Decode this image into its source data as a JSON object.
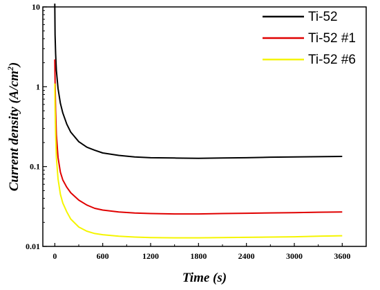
{
  "chart_data": {
    "type": "line",
    "title": "",
    "xlabel": "Time (s)",
    "ylabel_main": "Current density (A/cm",
    "ylabel_sup": "2",
    "ylabel_tail": ")",
    "xlim": [
      -150,
      3900
    ],
    "ylim": [
      0.01,
      10
    ],
    "yscale": "log",
    "grid": false,
    "legend_position": "top-right",
    "x_ticks": [
      0,
      600,
      1200,
      1800,
      2400,
      3000,
      3600
    ],
    "x_tick_labels": [
      "0",
      "600",
      "1200",
      "1800",
      "2400",
      "3000",
      "3600"
    ],
    "y_ticks": [
      0.01,
      0.1,
      1,
      10
    ],
    "y_tick_labels": [
      "0.01",
      "0.1",
      "1",
      "10"
    ],
    "series": [
      {
        "name": "Ti-52",
        "color": "#000000",
        "points": [
          [
            0,
            11
          ],
          [
            3,
            4.5
          ],
          [
            10,
            2.6
          ],
          [
            20,
            1.6
          ],
          [
            40,
            0.95
          ],
          [
            70,
            0.62
          ],
          [
            100,
            0.47
          ],
          [
            150,
            0.34
          ],
          [
            200,
            0.27
          ],
          [
            300,
            0.205
          ],
          [
            400,
            0.175
          ],
          [
            500,
            0.16
          ],
          [
            600,
            0.148
          ],
          [
            800,
            0.138
          ],
          [
            1000,
            0.132
          ],
          [
            1200,
            0.129
          ],
          [
            1500,
            0.128
          ],
          [
            1800,
            0.127
          ],
          [
            2100,
            0.128
          ],
          [
            2400,
            0.129
          ],
          [
            2700,
            0.131
          ],
          [
            3000,
            0.132
          ],
          [
            3300,
            0.133
          ],
          [
            3600,
            0.134
          ]
        ]
      },
      {
        "name": "Ti-52 #1",
        "color": "#e00000",
        "points": [
          [
            0,
            2.2
          ],
          [
            3,
            1.2
          ],
          [
            10,
            0.5
          ],
          [
            20,
            0.25
          ],
          [
            40,
            0.13
          ],
          [
            70,
            0.085
          ],
          [
            100,
            0.068
          ],
          [
            150,
            0.055
          ],
          [
            200,
            0.047
          ],
          [
            300,
            0.038
          ],
          [
            400,
            0.033
          ],
          [
            500,
            0.03
          ],
          [
            600,
            0.0285
          ],
          [
            800,
            0.027
          ],
          [
            1000,
            0.0262
          ],
          [
            1200,
            0.0258
          ],
          [
            1500,
            0.0255
          ],
          [
            1800,
            0.0255
          ],
          [
            2100,
            0.0258
          ],
          [
            2400,
            0.026
          ],
          [
            2700,
            0.0263
          ],
          [
            3000,
            0.0265
          ],
          [
            3300,
            0.0268
          ],
          [
            3600,
            0.027
          ]
        ]
      },
      {
        "name": "Ti-52 #6",
        "color": "#f5f500",
        "points": [
          [
            0,
            1.1
          ],
          [
            3,
            0.55
          ],
          [
            10,
            0.25
          ],
          [
            20,
            0.13
          ],
          [
            40,
            0.07
          ],
          [
            70,
            0.045
          ],
          [
            100,
            0.035
          ],
          [
            150,
            0.027
          ],
          [
            200,
            0.022
          ],
          [
            300,
            0.0175
          ],
          [
            400,
            0.0155
          ],
          [
            500,
            0.0145
          ],
          [
            600,
            0.014
          ],
          [
            800,
            0.0134
          ],
          [
            1000,
            0.0131
          ],
          [
            1200,
            0.0129
          ],
          [
            1500,
            0.0128
          ],
          [
            1800,
            0.0128
          ],
          [
            2100,
            0.0129
          ],
          [
            2400,
            0.013
          ],
          [
            2700,
            0.0131
          ],
          [
            3000,
            0.0132
          ],
          [
            3300,
            0.0134
          ],
          [
            3600,
            0.0136
          ]
        ]
      }
    ]
  }
}
